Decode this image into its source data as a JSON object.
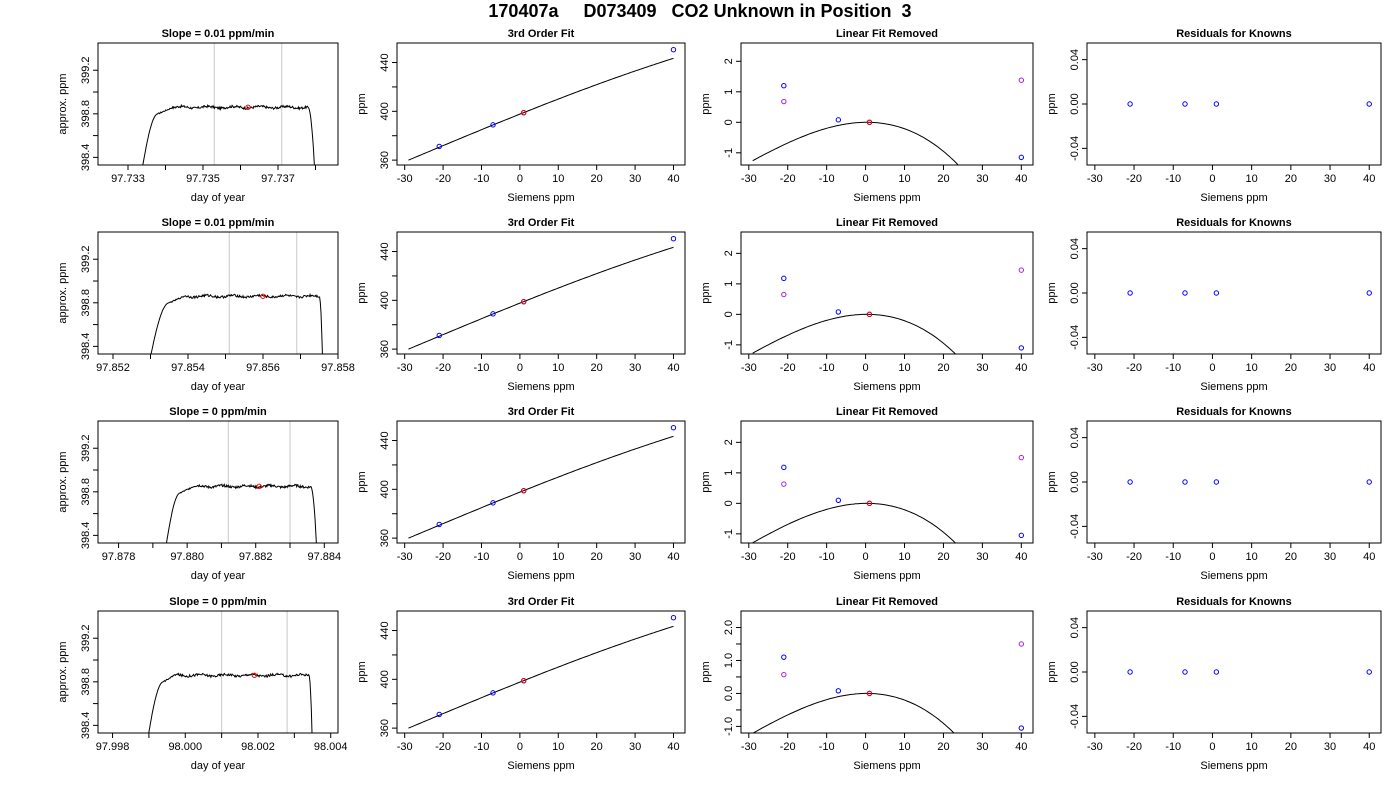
{
  "page": {
    "title": "170407a     D073409   CO2 Unknown in Position  3"
  },
  "style": {
    "trace_color": "#000000",
    "marker_line_color": "#c8c8c8",
    "unknown_point_color": "#ff0000",
    "known_point_color": "#0000ff",
    "linear_removed_known_color": "#a020f0"
  },
  "chart_data": [
    {
      "type": "line",
      "panel": "timeseries",
      "row": 1,
      "title": "Slope =  0.01  ppm/min",
      "xlabel": "day of year",
      "ylabel": "approx. ppm",
      "xlim": [
        97.7322,
        97.7386
      ],
      "ylim": [
        398.33,
        399.45
      ],
      "xticks": [
        97.733,
        97.734,
        97.735,
        97.736,
        97.737,
        97.738
      ],
      "xtick_labels": [
        "97.733",
        "",
        "97.735",
        "",
        "97.737",
        ""
      ],
      "yticks": [
        398.4,
        398.6,
        398.8,
        399.0,
        399.2
      ],
      "ytick_labels": [
        "398.4",
        "",
        "398.8",
        "",
        "399.2"
      ],
      "vlines": [
        97.7353,
        97.7371
      ],
      "trace": {
        "start": 97.7333,
        "rise_end": 97.7338,
        "plateau_start": 97.7342,
        "fall_start": 97.7378,
        "end": 97.738,
        "level": 398.86
      },
      "unknown_point": [
        97.7362,
        398.86
      ]
    },
    {
      "type": "scatter",
      "panel": "fit",
      "row": 1,
      "title": "3rd Order Fit",
      "xlabel": "Siemens ppm",
      "ylabel": "ppm",
      "xlim": [
        -32,
        43
      ],
      "ylim": [
        356,
        456
      ],
      "xticks": [
        -30,
        -20,
        -10,
        0,
        10,
        20,
        30,
        40
      ],
      "xtick_labels": [
        "-30",
        "-20",
        "-10",
        "0",
        "10",
        "20",
        "30",
        "40"
      ],
      "yticks": [
        360,
        380,
        400,
        420,
        440
      ],
      "ytick_labels": [
        "360",
        "",
        "400",
        "",
        "440"
      ],
      "knowns": [
        [
          -21,
          371.2
        ],
        [
          -7,
          388.9
        ],
        [
          1,
          398.9
        ],
        [
          40,
          450.5
        ]
      ],
      "unknown": [
        1,
        398.9
      ],
      "curve": {
        "c0": 397.69,
        "c1": 1.258,
        "c2": -0.00204,
        "c3": -2.03e-05,
        "from": -29,
        "to": 40
      }
    },
    {
      "type": "scatter",
      "panel": "linear_removed",
      "row": 1,
      "title": "Linear Fit Removed",
      "xlabel": "Siemens ppm",
      "ylabel": "ppm",
      "xlim": [
        -32,
        43
      ],
      "ylim": [
        -1.4,
        2.6
      ],
      "xticks": [
        -30,
        -20,
        -10,
        0,
        10,
        20,
        30,
        40
      ],
      "xtick_labels": [
        "-30",
        "-20",
        "-10",
        "0",
        "10",
        "20",
        "30",
        "40"
      ],
      "yticks": [
        -1,
        0,
        1,
        2
      ],
      "ytick_labels": [
        "-1",
        "0",
        "1",
        "2"
      ],
      "knowns": [
        [
          -21,
          1.2
        ],
        [
          -7,
          0.08
        ],
        [
          1,
          0.0
        ],
        [
          40,
          -1.15
        ]
      ],
      "linear_removed_knowns": [
        [
          -21,
          0.68
        ],
        [
          40,
          1.38
        ]
      ],
      "unknown": [
        1,
        0.0
      ],
      "curve": {
        "c1": 0.00128,
        "c2": -0.00204,
        "c3": -2.03e-05,
        "from": -29,
        "to": 40
      }
    },
    {
      "type": "scatter",
      "panel": "residuals",
      "row": 1,
      "title": "Residuals for Knowns",
      "xlabel": "Siemens ppm",
      "ylabel": "ppm",
      "xlim": [
        -32,
        43
      ],
      "ylim": [
        -0.055,
        0.055
      ],
      "xticks": [
        -30,
        -20,
        -10,
        0,
        10,
        20,
        30,
        40
      ],
      "xtick_labels": [
        "-30",
        "-20",
        "-10",
        "0",
        "10",
        "20",
        "30",
        "40"
      ],
      "yticks": [
        -0.04,
        0.0,
        0.04
      ],
      "ytick_labels": [
        "-0.04",
        "0.00",
        "0.04"
      ],
      "knowns": [
        [
          -21,
          0
        ],
        [
          -7,
          0
        ],
        [
          1,
          0
        ],
        [
          40,
          0
        ]
      ]
    },
    {
      "type": "line",
      "panel": "timeseries",
      "row": 2,
      "title": "Slope =  0.01  ppm/min",
      "xlabel": "day of year",
      "ylabel": "approx. ppm",
      "xlim": [
        97.8516,
        97.858
      ],
      "ylim": [
        398.33,
        399.45
      ],
      "xticks": [
        97.852,
        97.853,
        97.854,
        97.855,
        97.856,
        97.857,
        97.858
      ],
      "xtick_labels": [
        "97.852",
        "",
        "97.854",
        "",
        "97.856",
        "",
        "97.858"
      ],
      "yticks": [
        398.4,
        398.6,
        398.8,
        399.0,
        399.2
      ],
      "ytick_labels": [
        "398.4",
        "",
        "398.8",
        "",
        "399.2"
      ],
      "vlines": [
        97.8551,
        97.8569
      ],
      "trace": {
        "start": 97.8529,
        "rise_end": 97.8535,
        "plateau_start": 97.8539,
        "fall_start": 97.8575,
        "end": 97.8576,
        "level": 398.86
      },
      "unknown_point": [
        97.856,
        398.86
      ]
    },
    {
      "type": "scatter",
      "panel": "fit",
      "row": 2,
      "title": "3rd Order Fit",
      "xlabel": "Siemens ppm",
      "ylabel": "ppm",
      "xlim": [
        -32,
        43
      ],
      "ylim": [
        356,
        456
      ],
      "xticks": [
        -30,
        -20,
        -10,
        0,
        10,
        20,
        30,
        40
      ],
      "xtick_labels": [
        "-30",
        "-20",
        "-10",
        "0",
        "10",
        "20",
        "30",
        "40"
      ],
      "yticks": [
        360,
        380,
        400,
        420,
        440
      ],
      "ytick_labels": [
        "360",
        "",
        "400",
        "",
        "440"
      ],
      "knowns": [
        [
          -21,
          371.2
        ],
        [
          -7,
          388.9
        ],
        [
          1,
          398.9
        ],
        [
          40,
          450.5
        ]
      ],
      "unknown": [
        1,
        398.9
      ],
      "curve": {
        "c0": 397.69,
        "c1": 1.258,
        "c2": -0.00204,
        "c3": -2.03e-05,
        "from": -29,
        "to": 40
      }
    },
    {
      "type": "scatter",
      "panel": "linear_removed",
      "row": 2,
      "title": "Linear Fit Removed",
      "xlabel": "Siemens ppm",
      "ylabel": "ppm",
      "xlim": [
        -32,
        43
      ],
      "ylim": [
        -1.3,
        2.7
      ],
      "xticks": [
        -30,
        -20,
        -10,
        0,
        10,
        20,
        30,
        40
      ],
      "xtick_labels": [
        "-30",
        "-20",
        "-10",
        "0",
        "10",
        "20",
        "30",
        "40"
      ],
      "yticks": [
        -1,
        0,
        1,
        2
      ],
      "ytick_labels": [
        "-1",
        "0",
        "1",
        "2"
      ],
      "knowns": [
        [
          -21,
          1.18
        ],
        [
          -7,
          0.08
        ],
        [
          1,
          0.0
        ],
        [
          40,
          -1.1
        ]
      ],
      "linear_removed_knowns": [
        [
          -21,
          0.65
        ],
        [
          40,
          1.45
        ]
      ],
      "unknown": [
        1,
        0.0
      ],
      "curve": {
        "c1": 0.00128,
        "c2": -0.00204,
        "c3": -1.97e-05,
        "from": -29,
        "to": 40
      }
    },
    {
      "type": "scatter",
      "panel": "residuals",
      "row": 2,
      "title": "Residuals for Knowns",
      "xlabel": "Siemens ppm",
      "ylabel": "ppm",
      "xlim": [
        -32,
        43
      ],
      "ylim": [
        -0.055,
        0.055
      ],
      "xticks": [
        -30,
        -20,
        -10,
        0,
        10,
        20,
        30,
        40
      ],
      "xtick_labels": [
        "-30",
        "-20",
        "-10",
        "0",
        "10",
        "20",
        "30",
        "40"
      ],
      "yticks": [
        -0.04,
        0.0,
        0.04
      ],
      "ytick_labels": [
        "-0.04",
        "0.00",
        "0.04"
      ],
      "knowns": [
        [
          -21,
          0
        ],
        [
          -7,
          0
        ],
        [
          1,
          0
        ],
        [
          40,
          0
        ]
      ]
    },
    {
      "type": "line",
      "panel": "timeseries",
      "row": 3,
      "title": "Slope =  0  ppm/min",
      "xlabel": "day of year",
      "ylabel": "approx. ppm",
      "xlim": [
        97.8774,
        97.8844
      ],
      "ylim": [
        398.33,
        399.45
      ],
      "xticks": [
        97.878,
        97.879,
        97.88,
        97.881,
        97.882,
        97.883,
        97.884
      ],
      "xtick_labels": [
        "97.878",
        "",
        "97.880",
        "",
        "97.882",
        "",
        "97.884"
      ],
      "yticks": [
        398.4,
        398.6,
        398.8,
        399.0,
        399.2
      ],
      "ytick_labels": [
        "398.4",
        "",
        "398.8",
        "",
        "399.2"
      ],
      "vlines": [
        97.8812,
        97.883
      ],
      "trace": {
        "start": 97.8793,
        "rise_end": 97.8798,
        "plateau_start": 97.8802,
        "fall_start": 97.8836,
        "end": 97.8838,
        "level": 398.85
      },
      "unknown_point": [
        97.8821,
        398.85
      ]
    },
    {
      "type": "scatter",
      "panel": "fit",
      "row": 3,
      "title": "3rd Order Fit",
      "xlabel": "Siemens ppm",
      "ylabel": "ppm",
      "xlim": [
        -32,
        43
      ],
      "ylim": [
        356,
        456
      ],
      "xticks": [
        -30,
        -20,
        -10,
        0,
        10,
        20,
        30,
        40
      ],
      "xtick_labels": [
        "-30",
        "-20",
        "-10",
        "0",
        "10",
        "20",
        "30",
        "40"
      ],
      "yticks": [
        360,
        380,
        400,
        420,
        440
      ],
      "ytick_labels": [
        "360",
        "",
        "400",
        "",
        "440"
      ],
      "knowns": [
        [
          -21,
          371.2
        ],
        [
          -7,
          388.9
        ],
        [
          1,
          398.9
        ],
        [
          40,
          450.5
        ]
      ],
      "unknown": [
        1,
        398.9
      ],
      "curve": {
        "c0": 397.69,
        "c1": 1.258,
        "c2": -0.00204,
        "c3": -2.03e-05,
        "from": -29,
        "to": 40
      }
    },
    {
      "type": "scatter",
      "panel": "linear_removed",
      "row": 3,
      "title": "Linear Fit Removed",
      "xlabel": "Siemens ppm",
      "ylabel": "ppm",
      "xlim": [
        -32,
        43
      ],
      "ylim": [
        -1.3,
        2.7
      ],
      "xticks": [
        -30,
        -20,
        -10,
        0,
        10,
        20,
        30,
        40
      ],
      "xtick_labels": [
        "-30",
        "-20",
        "-10",
        "0",
        "10",
        "20",
        "30",
        "40"
      ],
      "yticks": [
        -1,
        0,
        1,
        2
      ],
      "ytick_labels": [
        "-1",
        "0",
        "1",
        "2"
      ],
      "knowns": [
        [
          -21,
          1.18
        ],
        [
          -7,
          0.1
        ],
        [
          1,
          0.0
        ],
        [
          40,
          -1.05
        ]
      ],
      "linear_removed_knowns": [
        [
          -21,
          0.63
        ],
        [
          40,
          1.5
        ]
      ],
      "unknown": [
        1,
        0.0
      ],
      "curve": {
        "c1": 0.00128,
        "c2": -0.00205,
        "c3": -1.92e-05,
        "from": -29,
        "to": 40
      }
    },
    {
      "type": "scatter",
      "panel": "residuals",
      "row": 3,
      "title": "Residuals for Knowns",
      "xlabel": "Siemens ppm",
      "ylabel": "ppm",
      "xlim": [
        -32,
        43
      ],
      "ylim": [
        -0.055,
        0.055
      ],
      "xticks": [
        -30,
        -20,
        -10,
        0,
        10,
        20,
        30,
        40
      ],
      "xtick_labels": [
        "-30",
        "-20",
        "-10",
        "0",
        "10",
        "20",
        "30",
        "40"
      ],
      "yticks": [
        -0.04,
        0.0,
        0.04
      ],
      "ytick_labels": [
        "-0.04",
        "0.00",
        "0.04"
      ],
      "knowns": [
        [
          -21,
          0
        ],
        [
          -7,
          0
        ],
        [
          1,
          0
        ],
        [
          40,
          0
        ]
      ]
    },
    {
      "type": "line",
      "panel": "timeseries",
      "row": 4,
      "title": "Slope =  0  ppm/min",
      "xlabel": "day of year",
      "ylabel": "approx. ppm",
      "xlim": [
        97.9976,
        98.0042
      ],
      "ylim": [
        398.33,
        399.45
      ],
      "xticks": [
        97.998,
        97.999,
        98.0,
        98.001,
        98.002,
        98.003,
        98.004
      ],
      "xtick_labels": [
        "97.998",
        "",
        "98.000",
        "",
        "98.002",
        "",
        "98.004"
      ],
      "yticks": [
        398.4,
        398.6,
        398.8,
        399.0,
        399.2
      ],
      "ytick_labels": [
        "398.4",
        "",
        "398.8",
        "",
        "399.2"
      ],
      "vlines": [
        98.001,
        98.0028
      ],
      "trace": {
        "start": 97.9989,
        "rise_end": 97.9994,
        "plateau_start": 97.9997,
        "fall_start": 98.0034,
        "end": 98.0035,
        "level": 398.86
      },
      "unknown_point": [
        98.0019,
        398.86
      ]
    },
    {
      "type": "scatter",
      "panel": "fit",
      "row": 4,
      "title": "3rd Order Fit",
      "xlabel": "Siemens ppm",
      "ylabel": "ppm",
      "xlim": [
        -32,
        43
      ],
      "ylim": [
        356,
        456
      ],
      "xticks": [
        -30,
        -20,
        -10,
        0,
        10,
        20,
        30,
        40
      ],
      "xtick_labels": [
        "-30",
        "-20",
        "-10",
        "0",
        "10",
        "20",
        "30",
        "40"
      ],
      "yticks": [
        360,
        380,
        400,
        420,
        440
      ],
      "ytick_labels": [
        "360",
        "",
        "400",
        "",
        "440"
      ],
      "knowns": [
        [
          -21,
          371.2
        ],
        [
          -7,
          388.9
        ],
        [
          1,
          398.9
        ],
        [
          40,
          450.5
        ]
      ],
      "unknown": [
        1,
        398.9
      ],
      "curve": {
        "c0": 397.69,
        "c1": 1.258,
        "c2": -0.00204,
        "c3": -2.03e-05,
        "from": -29,
        "to": 40
      }
    },
    {
      "type": "scatter",
      "panel": "linear_removed",
      "row": 4,
      "title": "Linear Fit Removed",
      "xlabel": "Siemens ppm",
      "ylabel": "ppm",
      "xlim": [
        -32,
        43
      ],
      "ylim": [
        -1.2,
        2.5
      ],
      "xticks": [
        -30,
        -20,
        -10,
        0,
        10,
        20,
        30,
        40
      ],
      "xtick_labels": [
        "-30",
        "-20",
        "-10",
        "0",
        "10",
        "20",
        "30",
        "40"
      ],
      "yticks": [
        -1.0,
        -0.5,
        0.0,
        0.5,
        1.0,
        1.5,
        2.0
      ],
      "ytick_labels": [
        "-1.0",
        "",
        "0.0",
        "",
        "1.0",
        "",
        "2.0"
      ],
      "knowns": [
        [
          -21,
          1.1
        ],
        [
          -7,
          0.08
        ],
        [
          1,
          0.0
        ],
        [
          40,
          -1.05
        ]
      ],
      "linear_removed_knowns": [
        [
          -21,
          0.57
        ],
        [
          40,
          1.5
        ]
      ],
      "unknown": [
        1,
        0.0
      ],
      "curve": {
        "c1": 0.00128,
        "c2": -0.00195,
        "c3": -1.92e-05,
        "from": -29,
        "to": 40
      }
    },
    {
      "type": "scatter",
      "panel": "residuals",
      "row": 4,
      "title": "Residuals for Knowns",
      "xlabel": "Siemens ppm",
      "ylabel": "ppm",
      "xlim": [
        -32,
        43
      ],
      "ylim": [
        -0.055,
        0.055
      ],
      "xticks": [
        -30,
        -20,
        -10,
        0,
        10,
        20,
        30,
        40
      ],
      "xtick_labels": [
        "-30",
        "-20",
        "-10",
        "0",
        "10",
        "20",
        "30",
        "40"
      ],
      "yticks": [
        -0.04,
        0.0,
        0.04
      ],
      "ytick_labels": [
        "-0.04",
        "0.00",
        "0.04"
      ],
      "knowns": [
        [
          -21,
          0
        ],
        [
          -7,
          0
        ],
        [
          1,
          0
        ],
        [
          40,
          0
        ]
      ]
    }
  ]
}
